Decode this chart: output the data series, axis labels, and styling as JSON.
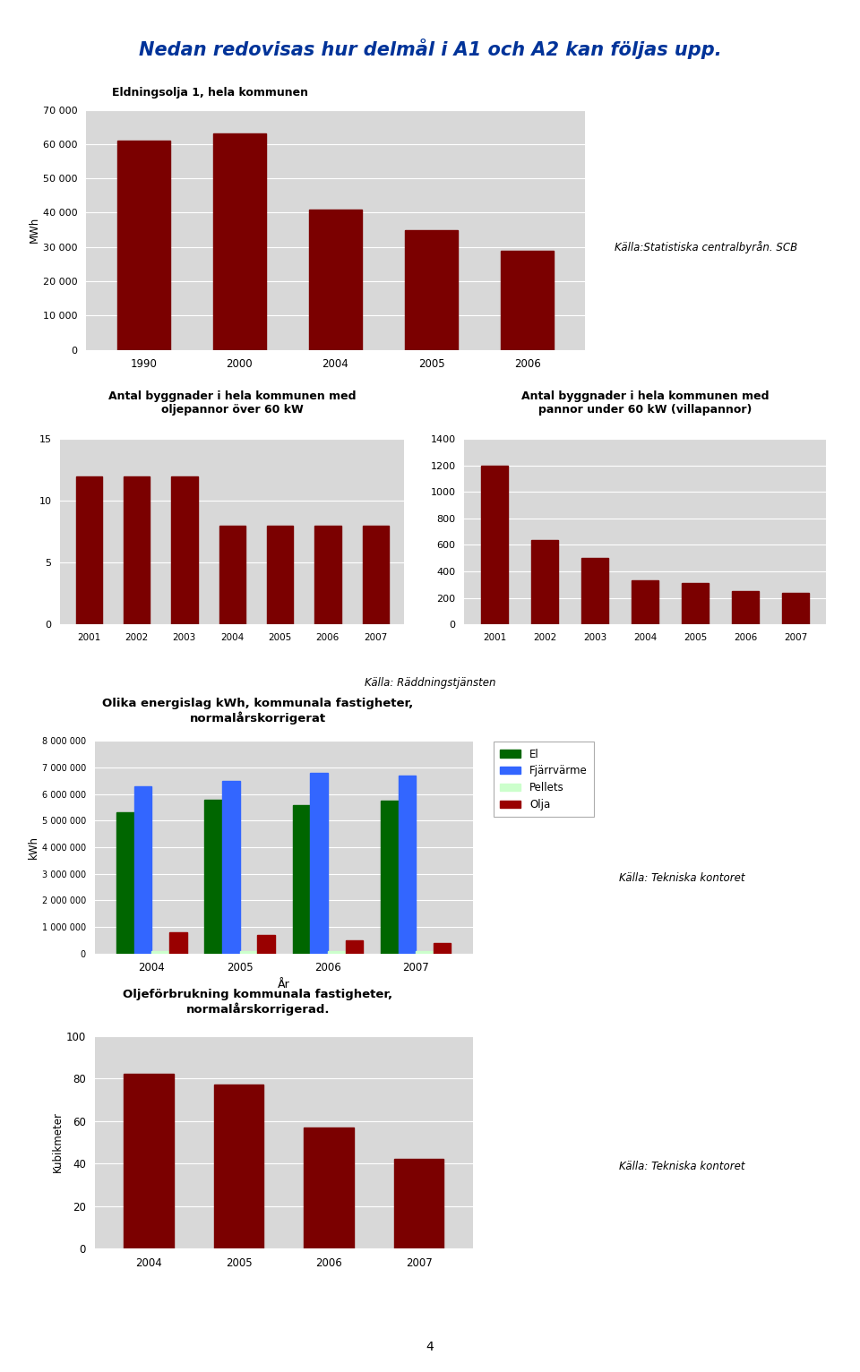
{
  "page_title": "Nedan redovisas hur delmål i A1 och A2 kan följas upp.",
  "page_title_color": "#003399",
  "page_number": "4",
  "chart1": {
    "title": "Eldningsolja 1, hela kommunen",
    "ylabel": "MWh",
    "categories": [
      "1990",
      "2000",
      "2004",
      "2005",
      "2006"
    ],
    "values": [
      61000,
      63000,
      41000,
      35000,
      29000
    ],
    "bar_color": "#7b0000",
    "ylim": [
      0,
      70000
    ],
    "yticks": [
      0,
      10000,
      20000,
      30000,
      40000,
      50000,
      60000,
      70000
    ],
    "ytick_labels": [
      "0",
      "10 000",
      "20 000",
      "30 000",
      "40 000",
      "50 000",
      "60 000",
      "70 000"
    ],
    "source": "Källa:Statistiska centralbyrån. SCB"
  },
  "chart2": {
    "title": "Antal byggnader i hela kommunen med\noljepannor över 60 kW",
    "categories": [
      "2001",
      "2002",
      "2003",
      "2004",
      "2005",
      "2006",
      "2007"
    ],
    "values": [
      12,
      12,
      12,
      8,
      8,
      8,
      8
    ],
    "bar_color": "#7b0000",
    "ylim": [
      0,
      15
    ],
    "yticks": [
      0,
      5,
      10,
      15
    ]
  },
  "chart3": {
    "title": "Antal byggnader i hela kommunen med\npannor under 60 kW (villapannor)",
    "categories": [
      "2001",
      "2002",
      "2003",
      "2004",
      "2005",
      "2006",
      "2007"
    ],
    "values": [
      1200,
      640,
      500,
      330,
      310,
      250,
      240
    ],
    "bar_color": "#7b0000",
    "ylim": [
      0,
      1400
    ],
    "yticks": [
      0,
      200,
      400,
      600,
      800,
      1000,
      1200,
      1400
    ]
  },
  "source_radd": "Källa: Räddningstjänsten",
  "chart4": {
    "title": "Olika energislag kWh, kommunala fastigheter,\nnormalårskorrigerat",
    "xlabel": "År",
    "ylabel": "kWh",
    "categories": [
      "2004",
      "2005",
      "2006",
      "2007"
    ],
    "el": [
      5300000,
      5800000,
      5600000,
      5750000
    ],
    "fjarrvarme": [
      6300000,
      6500000,
      6800000,
      6700000
    ],
    "pellets": [
      100000,
      100000,
      100000,
      100000
    ],
    "olja": [
      800000,
      700000,
      500000,
      400000
    ],
    "ylim": [
      0,
      8000000
    ],
    "yticks": [
      0,
      1000000,
      2000000,
      3000000,
      4000000,
      5000000,
      6000000,
      7000000,
      8000000
    ],
    "ytick_labels": [
      "0",
      "1 000 000",
      "2 000 000",
      "3 000 000",
      "4 000 000",
      "5 000 000",
      "6 000 000",
      "7 000 000",
      "8 000 000"
    ],
    "el_color": "#006600",
    "fjarrvarme_color": "#3366ff",
    "pellets_color": "#ccffcc",
    "olja_color": "#990000",
    "legend_labels": [
      "El",
      "Fjärrvärme",
      "Pellets",
      "Olja"
    ],
    "source": "Källa: Tekniska kontoret"
  },
  "chart5": {
    "title": "Oljeförbrukning kommunala fastigheter,\nnormalårskorrigerad.",
    "ylabel": "Kubikmeter",
    "categories": [
      "2004",
      "2005",
      "2006",
      "2007"
    ],
    "values": [
      82,
      77,
      57,
      42
    ],
    "bar_color": "#7b0000",
    "ylim": [
      0,
      100
    ],
    "yticks": [
      0,
      20,
      40,
      60,
      80,
      100
    ],
    "source": "Källa: Tekniska kontoret"
  }
}
